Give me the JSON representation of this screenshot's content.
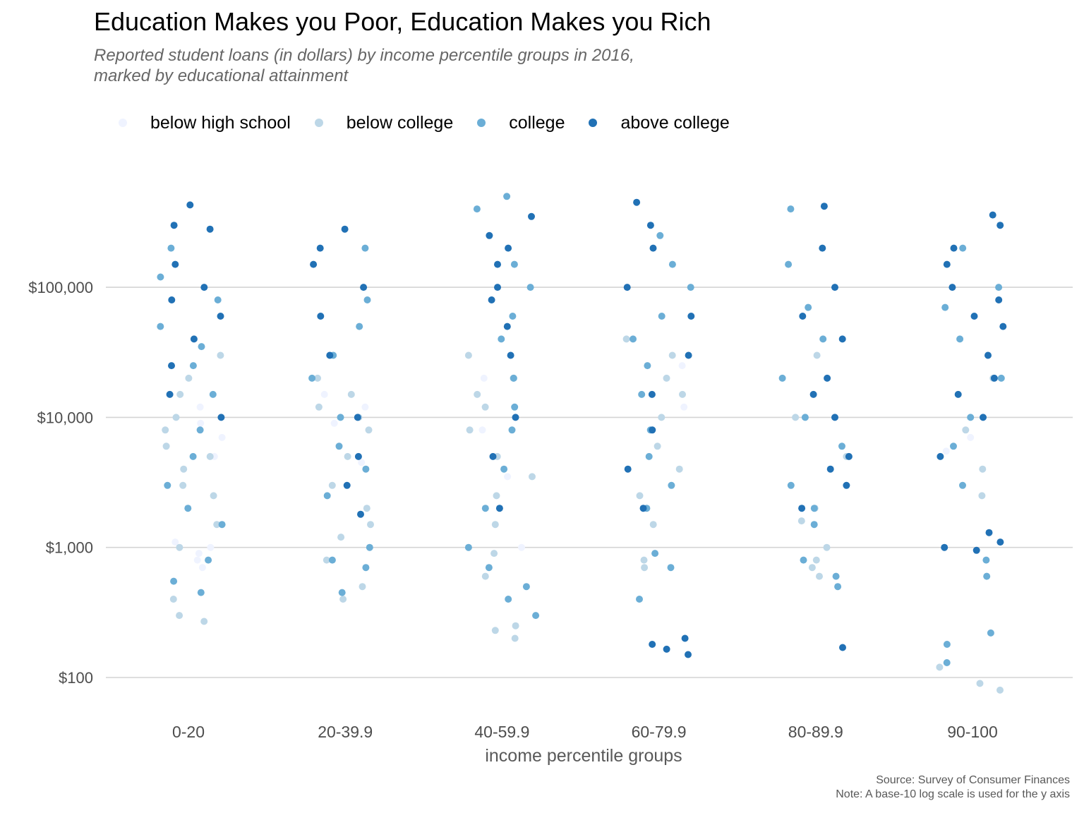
{
  "chart_data": {
    "type": "scatter",
    "title": "Education Makes you Poor, Education Makes you Rich",
    "subtitle": "Reported student loans (in dollars) by income percentile groups in 2016,\nmarked by educational attainment",
    "xlabel": "income percentile groups",
    "ylabel": "",
    "y_scale": "log10",
    "ylim": [
      70,
      600000
    ],
    "y_ticks": [
      100,
      1000,
      10000,
      100000
    ],
    "y_tick_labels": [
      "$100",
      "$1,000",
      "$10,000",
      "$100,000"
    ],
    "grid": "horizontal major",
    "legend_position": "top",
    "categories": [
      "0-20",
      "20-39.9",
      "40-59.9",
      "60-79.9",
      "80-89.9",
      "90-100"
    ],
    "series": [
      {
        "name": "below high school",
        "color": "#eff3ff",
        "points": [
          [
            "0-20",
            900
          ],
          [
            "0-20",
            1100
          ],
          [
            "0-20",
            800
          ],
          [
            "0-20",
            7000
          ],
          [
            "0-20",
            9000
          ],
          [
            "0-20",
            12000
          ],
          [
            "0-20",
            6000
          ],
          [
            "0-20",
            5000
          ],
          [
            "0-20",
            700
          ],
          [
            "0-20",
            1000
          ],
          [
            "20-39.9",
            4500
          ],
          [
            "20-39.9",
            9000
          ],
          [
            "20-39.9",
            12000
          ],
          [
            "20-39.9",
            15000
          ],
          [
            "40-59.9",
            3500
          ],
          [
            "40-59.9",
            20000
          ],
          [
            "40-59.9",
            8000
          ],
          [
            "40-59.9",
            1000
          ],
          [
            "60-79.9",
            12000
          ],
          [
            "60-79.9",
            25000
          ],
          [
            "90-100",
            5500
          ],
          [
            "90-100",
            7000
          ]
        ]
      },
      {
        "name": "below college",
        "color": "#bdd7e7",
        "points": [
          [
            "0-20",
            270
          ],
          [
            "0-20",
            300
          ],
          [
            "0-20",
            400
          ],
          [
            "0-20",
            1000
          ],
          [
            "0-20",
            1500
          ],
          [
            "0-20",
            2500
          ],
          [
            "0-20",
            3000
          ],
          [
            "0-20",
            4000
          ],
          [
            "0-20",
            5000
          ],
          [
            "0-20",
            6000
          ],
          [
            "0-20",
            8000
          ],
          [
            "0-20",
            10000
          ],
          [
            "0-20",
            15000
          ],
          [
            "0-20",
            20000
          ],
          [
            "0-20",
            30000
          ],
          [
            "20-39.9",
            400
          ],
          [
            "20-39.9",
            500
          ],
          [
            "20-39.9",
            800
          ],
          [
            "20-39.9",
            1200
          ],
          [
            "20-39.9",
            1500
          ],
          [
            "20-39.9",
            2000
          ],
          [
            "20-39.9",
            3000
          ],
          [
            "20-39.9",
            5000
          ],
          [
            "20-39.9",
            8000
          ],
          [
            "20-39.9",
            10000
          ],
          [
            "20-39.9",
            12000
          ],
          [
            "20-39.9",
            15000
          ],
          [
            "20-39.9",
            20000
          ],
          [
            "40-59.9",
            200
          ],
          [
            "40-59.9",
            230
          ],
          [
            "40-59.9",
            250
          ],
          [
            "40-59.9",
            600
          ],
          [
            "40-59.9",
            900
          ],
          [
            "40-59.9",
            1500
          ],
          [
            "40-59.9",
            2500
          ],
          [
            "40-59.9",
            3500
          ],
          [
            "40-59.9",
            5000
          ],
          [
            "40-59.9",
            8000
          ],
          [
            "40-59.9",
            12000
          ],
          [
            "40-59.9",
            15000
          ],
          [
            "40-59.9",
            20000
          ],
          [
            "40-59.9",
            30000
          ],
          [
            "60-79.9",
            700
          ],
          [
            "60-79.9",
            800
          ],
          [
            "60-79.9",
            1500
          ],
          [
            "60-79.9",
            2500
          ],
          [
            "60-79.9",
            4000
          ],
          [
            "60-79.9",
            6000
          ],
          [
            "60-79.9",
            10000
          ],
          [
            "60-79.9",
            15000
          ],
          [
            "60-79.9",
            20000
          ],
          [
            "60-79.9",
            30000
          ],
          [
            "60-79.9",
            40000
          ],
          [
            "80-89.9",
            600
          ],
          [
            "80-89.9",
            700
          ],
          [
            "80-89.9",
            800
          ],
          [
            "80-89.9",
            1000
          ],
          [
            "80-89.9",
            1600
          ],
          [
            "80-89.9",
            2000
          ],
          [
            "80-89.9",
            5000
          ],
          [
            "80-89.9",
            10000
          ],
          [
            "80-89.9",
            30000
          ],
          [
            "90-100",
            80
          ],
          [
            "90-100",
            90
          ],
          [
            "90-100",
            120
          ],
          [
            "90-100",
            2500
          ],
          [
            "90-100",
            4000
          ],
          [
            "90-100",
            8000
          ],
          [
            "90-100",
            20000
          ]
        ]
      },
      {
        "name": "college",
        "color": "#6baed6",
        "points": [
          [
            "0-20",
            450
          ],
          [
            "0-20",
            550
          ],
          [
            "0-20",
            800
          ],
          [
            "0-20",
            1500
          ],
          [
            "0-20",
            2000
          ],
          [
            "0-20",
            3000
          ],
          [
            "0-20",
            5000
          ],
          [
            "0-20",
            8000
          ],
          [
            "0-20",
            15000
          ],
          [
            "0-20",
            25000
          ],
          [
            "0-20",
            35000
          ],
          [
            "0-20",
            50000
          ],
          [
            "0-20",
            80000
          ],
          [
            "0-20",
            120000
          ],
          [
            "0-20",
            200000
          ],
          [
            "20-39.9",
            450
          ],
          [
            "20-39.9",
            700
          ],
          [
            "20-39.9",
            800
          ],
          [
            "20-39.9",
            1000
          ],
          [
            "20-39.9",
            2500
          ],
          [
            "20-39.9",
            4000
          ],
          [
            "20-39.9",
            6000
          ],
          [
            "20-39.9",
            10000
          ],
          [
            "20-39.9",
            20000
          ],
          [
            "20-39.9",
            30000
          ],
          [
            "20-39.9",
            50000
          ],
          [
            "20-39.9",
            80000
          ],
          [
            "20-39.9",
            200000
          ],
          [
            "40-59.9",
            300
          ],
          [
            "40-59.9",
            400
          ],
          [
            "40-59.9",
            500
          ],
          [
            "40-59.9",
            700
          ],
          [
            "40-59.9",
            1000
          ],
          [
            "40-59.9",
            2000
          ],
          [
            "40-59.9",
            4000
          ],
          [
            "40-59.9",
            8000
          ],
          [
            "40-59.9",
            12000
          ],
          [
            "40-59.9",
            20000
          ],
          [
            "40-59.9",
            40000
          ],
          [
            "40-59.9",
            60000
          ],
          [
            "40-59.9",
            100000
          ],
          [
            "40-59.9",
            150000
          ],
          [
            "40-59.9",
            400000
          ],
          [
            "40-59.9",
            500000
          ],
          [
            "60-79.9",
            400
          ],
          [
            "60-79.9",
            700
          ],
          [
            "60-79.9",
            900
          ],
          [
            "60-79.9",
            2000
          ],
          [
            "60-79.9",
            3000
          ],
          [
            "60-79.9",
            5000
          ],
          [
            "60-79.9",
            8000
          ],
          [
            "60-79.9",
            15000
          ],
          [
            "60-79.9",
            25000
          ],
          [
            "60-79.9",
            40000
          ],
          [
            "60-79.9",
            60000
          ],
          [
            "60-79.9",
            100000
          ],
          [
            "60-79.9",
            150000
          ],
          [
            "60-79.9",
            250000
          ],
          [
            "80-89.9",
            500
          ],
          [
            "80-89.9",
            600
          ],
          [
            "80-89.9",
            800
          ],
          [
            "80-89.9",
            1500
          ],
          [
            "80-89.9",
            2000
          ],
          [
            "80-89.9",
            3000
          ],
          [
            "80-89.9",
            6000
          ],
          [
            "80-89.9",
            10000
          ],
          [
            "80-89.9",
            20000
          ],
          [
            "80-89.9",
            40000
          ],
          [
            "80-89.9",
            70000
          ],
          [
            "80-89.9",
            150000
          ],
          [
            "80-89.9",
            400000
          ],
          [
            "90-100",
            130
          ],
          [
            "90-100",
            180
          ],
          [
            "90-100",
            220
          ],
          [
            "90-100",
            600
          ],
          [
            "90-100",
            800
          ],
          [
            "90-100",
            3000
          ],
          [
            "90-100",
            6000
          ],
          [
            "90-100",
            10000
          ],
          [
            "90-100",
            20000
          ],
          [
            "90-100",
            40000
          ],
          [
            "90-100",
            70000
          ],
          [
            "90-100",
            100000
          ],
          [
            "90-100",
            200000
          ]
        ]
      },
      {
        "name": "above college",
        "color": "#2171b5",
        "points": [
          [
            "0-20",
            10000
          ],
          [
            "0-20",
            15000
          ],
          [
            "0-20",
            25000
          ],
          [
            "0-20",
            40000
          ],
          [
            "0-20",
            60000
          ],
          [
            "0-20",
            80000
          ],
          [
            "0-20",
            100000
          ],
          [
            "0-20",
            150000
          ],
          [
            "0-20",
            280000
          ],
          [
            "0-20",
            300000
          ],
          [
            "0-20",
            430000
          ],
          [
            "20-39.9",
            1800
          ],
          [
            "20-39.9",
            3000
          ],
          [
            "20-39.9",
            5000
          ],
          [
            "20-39.9",
            10000
          ],
          [
            "20-39.9",
            30000
          ],
          [
            "20-39.9",
            60000
          ],
          [
            "20-39.9",
            100000
          ],
          [
            "20-39.9",
            150000
          ],
          [
            "20-39.9",
            200000
          ],
          [
            "20-39.9",
            280000
          ],
          [
            "40-59.9",
            2000
          ],
          [
            "40-59.9",
            5000
          ],
          [
            "40-59.9",
            10000
          ],
          [
            "40-59.9",
            30000
          ],
          [
            "40-59.9",
            50000
          ],
          [
            "40-59.9",
            80000
          ],
          [
            "40-59.9",
            100000
          ],
          [
            "40-59.9",
            150000
          ],
          [
            "40-59.9",
            200000
          ],
          [
            "40-59.9",
            250000
          ],
          [
            "40-59.9",
            350000
          ],
          [
            "60-79.9",
            150
          ],
          [
            "60-79.9",
            165
          ],
          [
            "60-79.9",
            180
          ],
          [
            "60-79.9",
            200
          ],
          [
            "60-79.9",
            2000
          ],
          [
            "60-79.9",
            4000
          ],
          [
            "60-79.9",
            8000
          ],
          [
            "60-79.9",
            15000
          ],
          [
            "60-79.9",
            30000
          ],
          [
            "60-79.9",
            60000
          ],
          [
            "60-79.9",
            100000
          ],
          [
            "60-79.9",
            200000
          ],
          [
            "60-79.9",
            300000
          ],
          [
            "60-79.9",
            450000
          ],
          [
            "80-89.9",
            170
          ],
          [
            "80-89.9",
            2000
          ],
          [
            "80-89.9",
            3000
          ],
          [
            "80-89.9",
            4000
          ],
          [
            "80-89.9",
            5000
          ],
          [
            "80-89.9",
            10000
          ],
          [
            "80-89.9",
            15000
          ],
          [
            "80-89.9",
            20000
          ],
          [
            "80-89.9",
            40000
          ],
          [
            "80-89.9",
            60000
          ],
          [
            "80-89.9",
            100000
          ],
          [
            "80-89.9",
            200000
          ],
          [
            "80-89.9",
            420000
          ],
          [
            "90-100",
            950
          ],
          [
            "90-100",
            1000
          ],
          [
            "90-100",
            1100
          ],
          [
            "90-100",
            1300
          ],
          [
            "90-100",
            5000
          ],
          [
            "90-100",
            10000
          ],
          [
            "90-100",
            15000
          ],
          [
            "90-100",
            20000
          ],
          [
            "90-100",
            30000
          ],
          [
            "90-100",
            50000
          ],
          [
            "90-100",
            60000
          ],
          [
            "90-100",
            80000
          ],
          [
            "90-100",
            100000
          ],
          [
            "90-100",
            150000
          ],
          [
            "90-100",
            200000
          ],
          [
            "90-100",
            300000
          ],
          [
            "90-100",
            360000
          ]
        ]
      }
    ],
    "caption": [
      "Source: Survey of Consumer Finances",
      "Note: A base-10 log scale is used for the y axis"
    ]
  }
}
